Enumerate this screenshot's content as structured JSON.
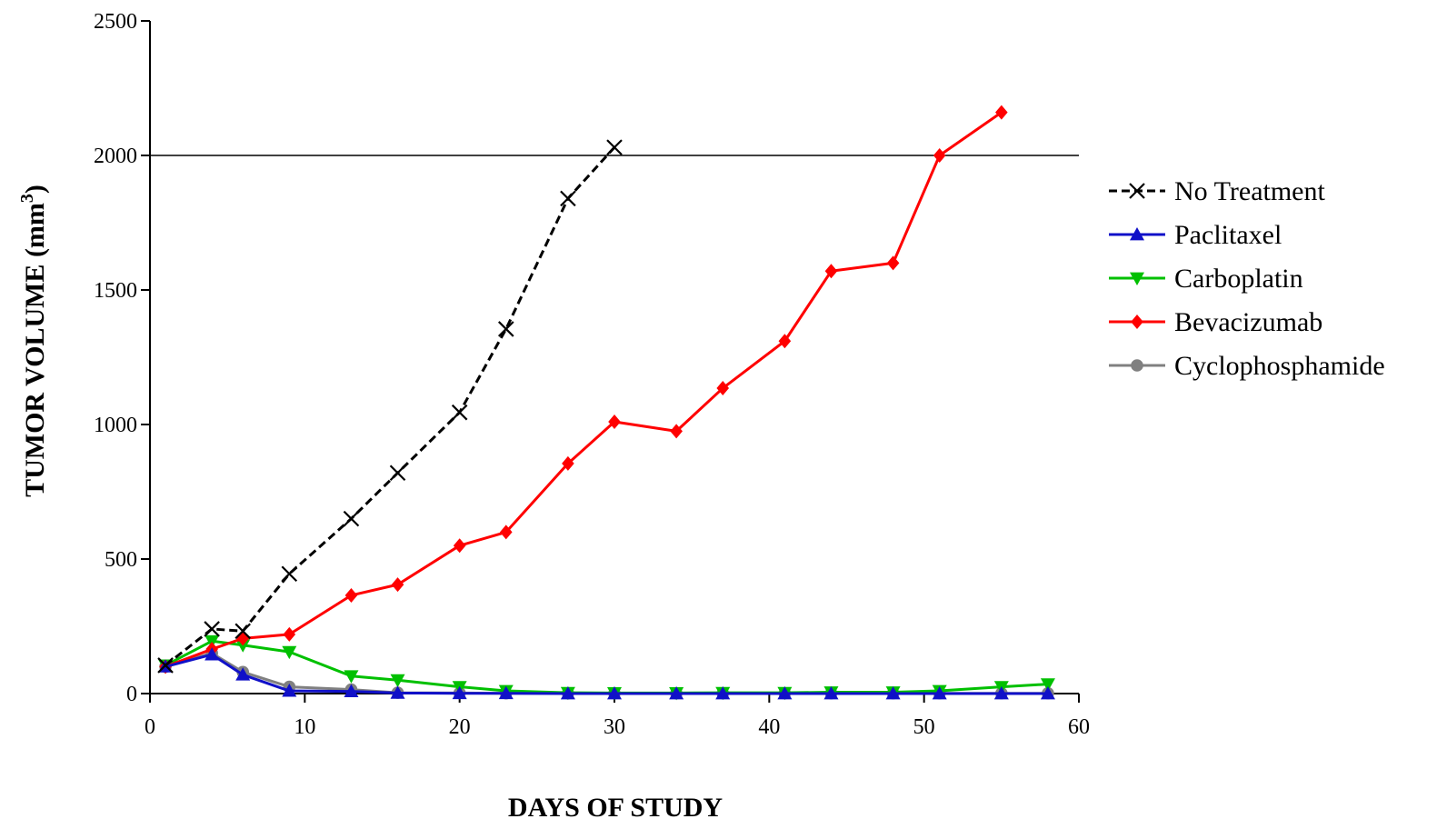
{
  "chart_data": {
    "type": "line",
    "xlabel": "DAYS OF STUDY",
    "ylabel_main": "TUMOR VOLUME (mm",
    "ylabel_sup": "3",
    "ylabel_tail": ")",
    "xlim": [
      0,
      60
    ],
    "ylim": [
      0,
      2500
    ],
    "xticks": [
      0,
      10,
      20,
      30,
      40,
      50,
      60
    ],
    "yticks": [
      0,
      500,
      1000,
      1500,
      2000,
      2500
    ],
    "reference_line_y": 2000,
    "grid": false,
    "legend_position": "right",
    "series": [
      {
        "name": "No Treatment",
        "color": "#000000",
        "line_style": "dashed",
        "marker": "x",
        "x": [
          1,
          4,
          6,
          9,
          13,
          16,
          20,
          23,
          27,
          30
        ],
        "y": [
          105,
          240,
          232,
          445,
          650,
          820,
          1045,
          1355,
          1840,
          2030
        ]
      },
      {
        "name": "Paclitaxel",
        "color": "#1010c8",
        "line_style": "solid",
        "marker": "triangle-up",
        "x": [
          1,
          4,
          6,
          9,
          13,
          16,
          20,
          23,
          27,
          30,
          34,
          37,
          41,
          44,
          48,
          51,
          55,
          58
        ],
        "y": [
          100,
          145,
          70,
          10,
          8,
          2,
          1,
          1,
          0,
          0,
          0,
          0,
          0,
          0,
          0,
          0,
          0,
          0
        ]
      },
      {
        "name": "Carboplatin",
        "color": "#00c000",
        "line_style": "solid",
        "marker": "triangle-down",
        "x": [
          1,
          4,
          6,
          9,
          13,
          16,
          20,
          23,
          27,
          30,
          34,
          37,
          41,
          44,
          48,
          51,
          55,
          58
        ],
        "y": [
          105,
          195,
          180,
          155,
          65,
          50,
          25,
          10,
          3,
          2,
          2,
          3,
          3,
          5,
          5,
          10,
          25,
          35
        ]
      },
      {
        "name": "Bevacizumab",
        "color": "#ff0000",
        "line_style": "solid",
        "marker": "diamond",
        "x": [
          1,
          4,
          6,
          9,
          13,
          16,
          20,
          23,
          27,
          30,
          34,
          37,
          41,
          44,
          48,
          51,
          55
        ],
        "y": [
          100,
          165,
          205,
          220,
          365,
          405,
          550,
          600,
          855,
          1010,
          975,
          1135,
          1310,
          1570,
          1600,
          2000,
          2160
        ]
      },
      {
        "name": "Cyclophosphamide",
        "color": "#808080",
        "line_style": "solid",
        "marker": "circle",
        "x": [
          1,
          4,
          6,
          9,
          13,
          16,
          20,
          23,
          27,
          30,
          34,
          37,
          41,
          44,
          48,
          51,
          55,
          58
        ],
        "y": [
          100,
          150,
          80,
          25,
          15,
          3,
          2,
          1,
          1,
          1,
          1,
          1,
          1,
          1,
          1,
          1,
          1,
          1
        ]
      }
    ]
  }
}
